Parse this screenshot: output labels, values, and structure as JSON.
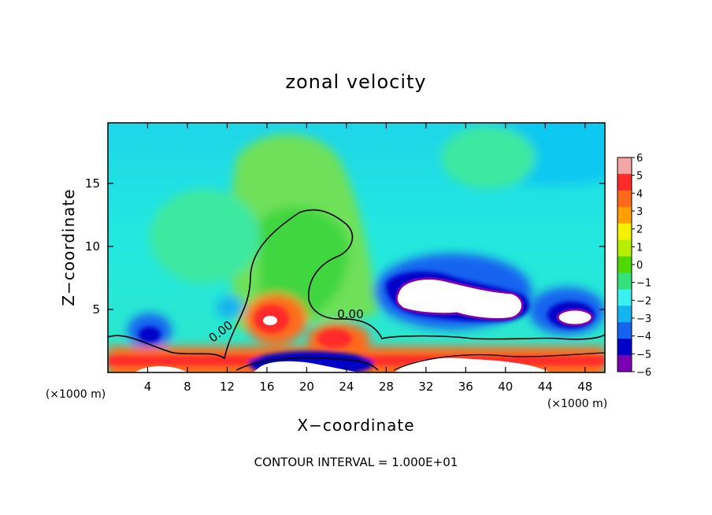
{
  "chart_data": {
    "type": "heatmap",
    "title": "zonal velocity",
    "xlabel": "X−coordinate",
    "ylabel": "Z−coordinate",
    "x_unit": "(×1000 m)",
    "y_unit": "(×1000 m)",
    "xlim": [
      0,
      50
    ],
    "ylim": [
      0,
      19.8
    ],
    "x_ticks": [
      4,
      8,
      12,
      16,
      20,
      24,
      28,
      32,
      36,
      40,
      44,
      48
    ],
    "y_ticks": [
      5,
      10,
      15
    ],
    "x_tick_labels": [
      "4",
      "8",
      "12",
      "16",
      "20",
      "24",
      "28",
      "32",
      "36",
      "40",
      "44",
      "48"
    ],
    "y_tick_labels": [
      "5",
      "10",
      "15"
    ],
    "colorbar": {
      "min": -6,
      "max": 6,
      "ticks": [
        6,
        5,
        4,
        3,
        2,
        1,
        0,
        -1,
        -2,
        -3,
        -4,
        -5,
        -6
      ],
      "tick_labels": [
        "6",
        "5",
        "4",
        "3",
        "2",
        "1",
        "0",
        "−1",
        "−2",
        "−3",
        "−4",
        "−5",
        "−6"
      ],
      "colors": [
        "#f4a6a6",
        "#ff2a2a",
        "#ff6a1a",
        "#ffa000",
        "#f5f000",
        "#b4f000",
        "#4fd800",
        "#33e07a",
        "#3cf0f0",
        "#14b4f0",
        "#1464f0",
        "#0000c8",
        "#7a00b4"
      ]
    },
    "contour_labels": [
      {
        "text": "0.00",
        "x": 11.6,
        "y": 3.0,
        "angle": -38
      },
      {
        "text": "0.00",
        "x": 24.4,
        "y": 4.3,
        "angle": 0
      }
    ],
    "features": [
      {
        "sign": "positive",
        "x": 16.8,
        "z": 4.2,
        "value": 5.5
      },
      {
        "sign": "positive",
        "x": 22.5,
        "z": 2.8,
        "value": 4.0
      },
      {
        "sign": "positive",
        "x": 2.0,
        "z": 1.2,
        "value": 4.0
      },
      {
        "sign": "positive",
        "x": 46.0,
        "z": 1.5,
        "value": 4.0
      },
      {
        "sign": "negative",
        "x": 34.0,
        "z": 6.0,
        "value": -6.0
      },
      {
        "sign": "negative",
        "x": 46.5,
        "z": 4.5,
        "value": -6.0
      },
      {
        "sign": "negative",
        "x": 4.5,
        "z": 3.0,
        "value": -4.0
      },
      {
        "sign": "negative",
        "x": 18.0,
        "z": 1.0,
        "value": -5.0
      }
    ],
    "annotation": "CONTOUR INTERVAL = 1.000E+01"
  }
}
